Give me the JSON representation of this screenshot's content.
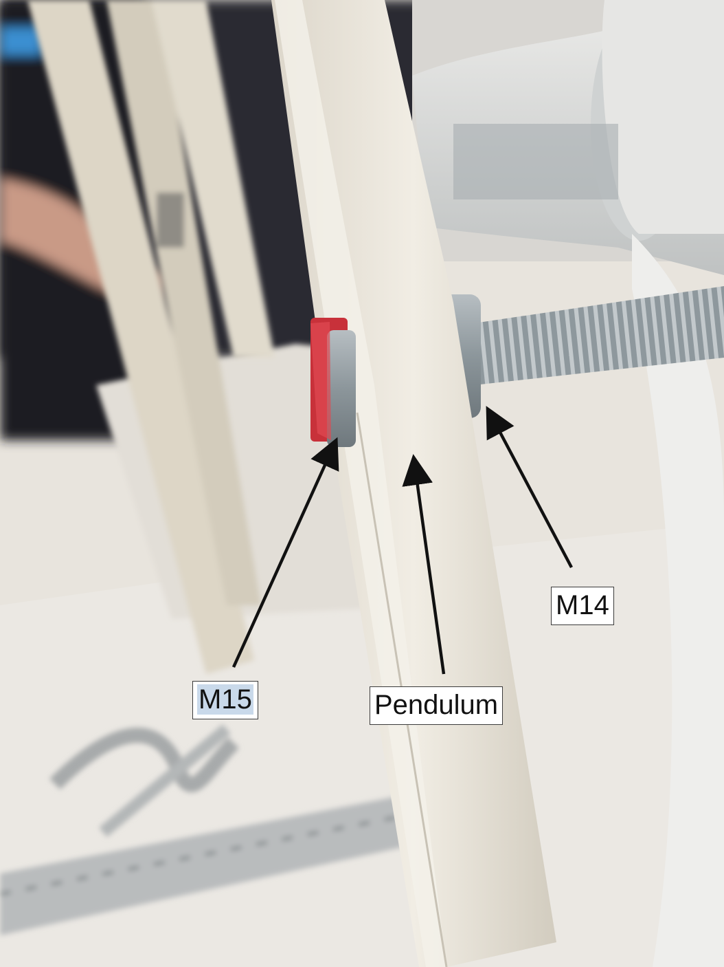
{
  "photo": {
    "subject": "pendulum-assembly-photo",
    "colors": {
      "background": "#d9d6d0",
      "pendulum_bar": "#ece7dc",
      "tape": "#c8313a",
      "bolt": "#9aa3a8",
      "arrow": "#111111"
    }
  },
  "annotations": {
    "m14": {
      "text": "M14"
    },
    "m15": {
      "text": "M15"
    },
    "pendulum": {
      "text": "Pendulum"
    }
  }
}
